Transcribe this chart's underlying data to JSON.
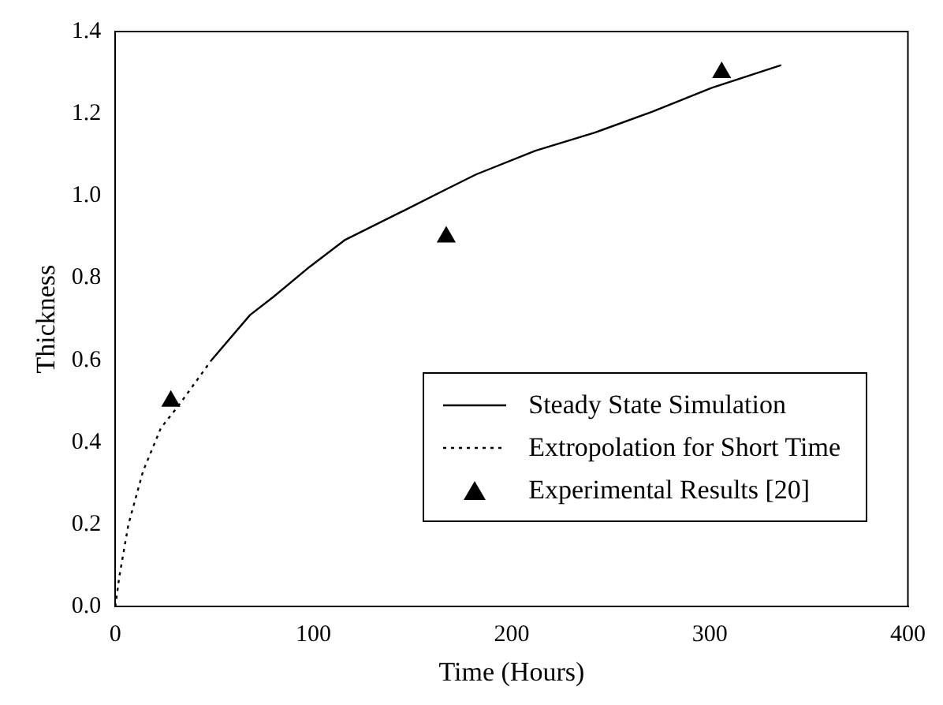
{
  "chart_data": {
    "type": "line",
    "xlabel": "Time (Hours)",
    "ylabel": "Thickness",
    "xlim": [
      0,
      400
    ],
    "xticks": [
      0,
      100,
      200,
      300,
      400
    ],
    "ylim": [
      0,
      1.4
    ],
    "yticks": [
      {
        "value": 0,
        "label": "0.0"
      },
      {
        "value": 0.2,
        "label": "0.2"
      },
      {
        "value": 0.4,
        "label": "0.4"
      },
      {
        "value": 0.6,
        "label": "0.6"
      },
      {
        "value": 0.8,
        "label": "0.8"
      },
      {
        "value": 1,
        "label": "1.0"
      },
      {
        "value": 1.2,
        "label": "1.2"
      },
      {
        "value": 1.4,
        "label": "1.4"
      }
    ],
    "grid": false,
    "legend": "bottom right",
    "series": [
      {
        "name": "Steady State Simulation",
        "line_style": "solid",
        "marker": "none",
        "color": "#000000",
        "x": [
          48.5,
          68,
          80,
          98,
          116,
          146,
          167,
          182,
          212,
          242,
          271,
          301,
          336
        ],
        "values": [
          0.6,
          0.71,
          0.755,
          0.827,
          0.893,
          0.965,
          1.016,
          1.052,
          1.11,
          1.154,
          1.205,
          1.263,
          1.318
        ]
      },
      {
        "name": "Extropolation for Short Time",
        "line_style": "dotted",
        "marker": "none",
        "color": "#000000",
        "x": [
          0,
          2,
          6.6,
          14,
          23,
          32,
          41,
          48.5
        ],
        "values": [
          0,
          0.073,
          0.2,
          0.33,
          0.435,
          0.49,
          0.55,
          0.6
        ]
      },
      {
        "name": "Experimental Results [20]",
        "type": "scatter",
        "marker": "triangle",
        "color": "#000000",
        "x": [
          28,
          167,
          306
        ],
        "values": [
          0.5,
          0.9,
          1.3
        ]
      }
    ]
  }
}
